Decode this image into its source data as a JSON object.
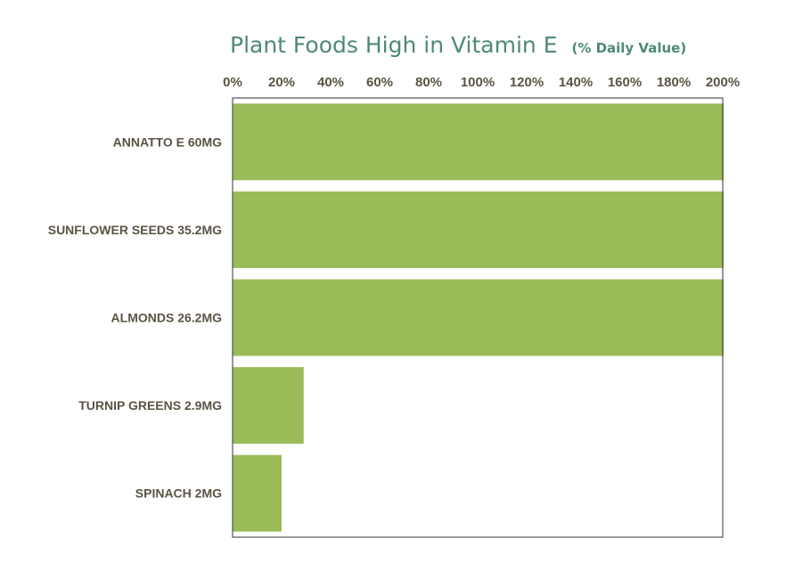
{
  "colors": {
    "title": "#4f8a73",
    "bar": "#9bbb59",
    "axis_text": "#5b5343",
    "frame": "#333333"
  },
  "chart_data": {
    "type": "bar",
    "orientation": "horizontal",
    "title": "Plant Foods High in Vitamin E",
    "subtitle": "(% Daily Value)",
    "categories": [
      "ANNATTO E 60MG",
      "SUNFLOWER SEEDS 35.2MG",
      "ALMONDS 26.2MG",
      "TURNIP GREENS 2.9MG",
      "SPINACH 2MG"
    ],
    "values": [
      200,
      200,
      200,
      29,
      20
    ],
    "xlim": [
      0,
      200
    ],
    "x_ticks": [
      0,
      20,
      40,
      60,
      80,
      100,
      120,
      140,
      160,
      180,
      200
    ],
    "x_tick_labels": [
      "0%",
      "20%",
      "40%",
      "60%",
      "80%",
      "100%",
      "120%",
      "140%",
      "160%",
      "180%",
      "200%"
    ],
    "x_axis_position": "top",
    "xlabel": "",
    "ylabel": "",
    "grid": false,
    "legend": "none"
  }
}
